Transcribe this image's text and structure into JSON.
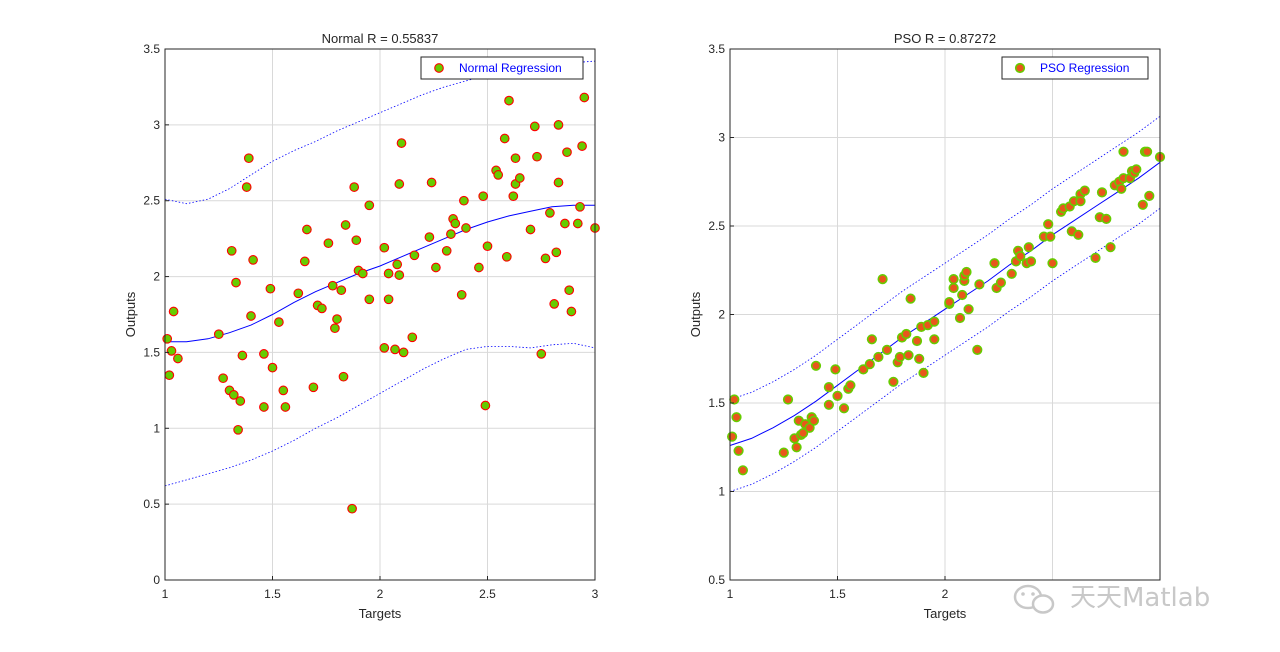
{
  "watermark": "天天Matlab",
  "colors": {
    "marker_fill": "#66cc00",
    "marker_edge_normal": "#ff0000",
    "marker_fill_pso": "#e8571c",
    "marker_edge_pso": "#66cc00",
    "fit_line": "#0000ff",
    "bound_line": "#0000ff",
    "grid": "#d9d9d9",
    "axis": "#262626"
  },
  "chart_data": [
    {
      "type": "scatter",
      "title": "Normal R =  0.55837",
      "xlabel": "Targets",
      "ylabel": "Outputs",
      "xlim": [
        1,
        3
      ],
      "ylim": [
        0,
        3.5
      ],
      "xticks": [
        1,
        1.5,
        2,
        2.5,
        3
      ],
      "xtick_labels": [
        "1",
        "1.5",
        "2",
        "2.5",
        "3"
      ],
      "yticks": [
        0,
        0.5,
        1,
        1.5,
        2,
        2.5,
        3,
        3.5
      ],
      "ytick_labels": [
        "0",
        "0.5",
        "1",
        "1.5",
        "2",
        "2.5",
        "3",
        "3.5"
      ],
      "grid": true,
      "legend": {
        "label": "Normal Regression",
        "placement": "top-right"
      },
      "points": [
        [
          1.01,
          1.59
        ],
        [
          1.02,
          1.35
        ],
        [
          1.03,
          1.51
        ],
        [
          1.04,
          1.77
        ],
        [
          1.06,
          1.46
        ],
        [
          1.25,
          1.62
        ],
        [
          1.27,
          1.33
        ],
        [
          1.3,
          1.25
        ],
        [
          1.31,
          2.17
        ],
        [
          1.32,
          1.22
        ],
        [
          1.33,
          1.96
        ],
        [
          1.34,
          0.99
        ],
        [
          1.35,
          1.18
        ],
        [
          1.36,
          1.48
        ],
        [
          1.38,
          2.59
        ],
        [
          1.39,
          2.78
        ],
        [
          1.4,
          1.74
        ],
        [
          1.41,
          2.11
        ],
        [
          1.46,
          1.49
        ],
        [
          1.46,
          1.14
        ],
        [
          1.49,
          1.92
        ],
        [
          1.5,
          1.4
        ],
        [
          1.53,
          1.7
        ],
        [
          1.55,
          1.25
        ],
        [
          1.56,
          1.14
        ],
        [
          1.62,
          1.89
        ],
        [
          1.65,
          2.1
        ],
        [
          1.66,
          2.31
        ],
        [
          1.69,
          1.27
        ],
        [
          1.71,
          1.81
        ],
        [
          1.73,
          1.79
        ],
        [
          1.76,
          2.22
        ],
        [
          1.78,
          1.94
        ],
        [
          1.79,
          1.66
        ],
        [
          1.8,
          1.72
        ],
        [
          1.82,
          1.91
        ],
        [
          1.83,
          1.34
        ],
        [
          1.84,
          2.34
        ],
        [
          1.87,
          0.47
        ],
        [
          1.88,
          2.59
        ],
        [
          1.89,
          2.24
        ],
        [
          1.9,
          2.04
        ],
        [
          1.92,
          2.02
        ],
        [
          1.95,
          2.47
        ],
        [
          1.95,
          1.85
        ],
        [
          2.02,
          2.19
        ],
        [
          2.02,
          1.53
        ],
        [
          2.04,
          1.85
        ],
        [
          2.04,
          2.02
        ],
        [
          2.07,
          1.52
        ],
        [
          2.08,
          2.08
        ],
        [
          2.09,
          2.61
        ],
        [
          2.09,
          2.01
        ],
        [
          2.1,
          2.88
        ],
        [
          2.11,
          1.5
        ],
        [
          2.15,
          1.6
        ],
        [
          2.16,
          2.14
        ],
        [
          2.23,
          2.26
        ],
        [
          2.24,
          2.62
        ],
        [
          2.26,
          2.06
        ],
        [
          2.31,
          2.17
        ],
        [
          2.33,
          2.28
        ],
        [
          2.34,
          2.38
        ],
        [
          2.35,
          2.35
        ],
        [
          2.38,
          1.88
        ],
        [
          2.39,
          2.5
        ],
        [
          2.4,
          2.32
        ],
        [
          2.46,
          2.06
        ],
        [
          2.48,
          2.53
        ],
        [
          2.49,
          1.15
        ],
        [
          2.5,
          2.2
        ],
        [
          2.54,
          2.7
        ],
        [
          2.55,
          2.67
        ],
        [
          2.58,
          2.91
        ],
        [
          2.59,
          2.13
        ],
        [
          2.6,
          3.16
        ],
        [
          2.62,
          2.53
        ],
        [
          2.63,
          2.61
        ],
        [
          2.63,
          2.78
        ],
        [
          2.65,
          2.65
        ],
        [
          2.7,
          2.31
        ],
        [
          2.72,
          2.99
        ],
        [
          2.73,
          2.79
        ],
        [
          2.75,
          1.49
        ],
        [
          2.77,
          2.12
        ],
        [
          2.79,
          2.42
        ],
        [
          2.81,
          1.82
        ],
        [
          2.82,
          2.16
        ],
        [
          2.83,
          2.62
        ],
        [
          2.83,
          3.0
        ],
        [
          2.86,
          2.35
        ],
        [
          2.87,
          2.82
        ],
        [
          2.88,
          1.91
        ],
        [
          2.89,
          1.77
        ],
        [
          2.92,
          2.35
        ],
        [
          2.93,
          2.46
        ],
        [
          2.94,
          2.86
        ],
        [
          2.95,
          3.18
        ],
        [
          3.0,
          2.32
        ]
      ],
      "fit_line": [
        [
          1.0,
          1.57
        ],
        [
          1.1,
          1.57
        ],
        [
          1.2,
          1.59
        ],
        [
          1.3,
          1.63
        ],
        [
          1.4,
          1.68
        ],
        [
          1.5,
          1.75
        ],
        [
          1.6,
          1.83
        ],
        [
          1.7,
          1.9
        ],
        [
          1.8,
          1.96
        ],
        [
          1.9,
          2.02
        ],
        [
          2.0,
          2.07
        ],
        [
          2.1,
          2.13
        ],
        [
          2.2,
          2.19
        ],
        [
          2.3,
          2.25
        ],
        [
          2.4,
          2.31
        ],
        [
          2.5,
          2.36
        ],
        [
          2.6,
          2.4
        ],
        [
          2.7,
          2.43
        ],
        [
          2.8,
          2.46
        ],
        [
          2.9,
          2.47
        ],
        [
          3.0,
          2.47
        ]
      ],
      "upper_bound": [
        [
          1.0,
          2.51
        ],
        [
          1.1,
          2.48
        ],
        [
          1.2,
          2.51
        ],
        [
          1.3,
          2.58
        ],
        [
          1.4,
          2.67
        ],
        [
          1.5,
          2.76
        ],
        [
          1.6,
          2.83
        ],
        [
          1.7,
          2.89
        ],
        [
          1.8,
          2.96
        ],
        [
          1.9,
          3.02
        ],
        [
          2.0,
          3.08
        ],
        [
          2.1,
          3.14
        ],
        [
          2.2,
          3.2
        ],
        [
          2.3,
          3.25
        ],
        [
          2.4,
          3.29
        ],
        [
          2.5,
          3.33
        ],
        [
          2.6,
          3.36
        ],
        [
          2.7,
          3.38
        ],
        [
          2.8,
          3.4
        ],
        [
          2.9,
          3.41
        ],
        [
          3.0,
          3.42
        ]
      ],
      "lower_bound": [
        [
          1.0,
          0.62
        ],
        [
          1.1,
          0.66
        ],
        [
          1.2,
          0.7
        ],
        [
          1.3,
          0.74
        ],
        [
          1.4,
          0.79
        ],
        [
          1.5,
          0.85
        ],
        [
          1.6,
          0.92
        ],
        [
          1.7,
          1.0
        ],
        [
          1.8,
          1.07
        ],
        [
          1.9,
          1.15
        ],
        [
          2.0,
          1.23
        ],
        [
          2.1,
          1.31
        ],
        [
          2.2,
          1.39
        ],
        [
          2.3,
          1.46
        ],
        [
          2.4,
          1.52
        ],
        [
          2.5,
          1.54
        ],
        [
          2.6,
          1.54
        ],
        [
          2.7,
          1.53
        ],
        [
          2.8,
          1.55
        ],
        [
          2.9,
          1.56
        ],
        [
          3.0,
          1.53
        ]
      ]
    },
    {
      "type": "scatter",
      "title": "PSO R =  0.87272",
      "xlabel": "Targets",
      "ylabel": "Outputs",
      "xlim": [
        1,
        3
      ],
      "ylim": [
        0.5,
        3.5
      ],
      "xticks": [
        1,
        1.5,
        2
      ],
      "xtick_labels": [
        "1",
        "1.5",
        "2"
      ],
      "xgrid_extra": [
        2.5
      ],
      "yticks": [
        0.5,
        1,
        1.5,
        2,
        2.5,
        3,
        3.5
      ],
      "ytick_labels": [
        "0.5",
        "1",
        "1.5",
        "2",
        "2.5",
        "3",
        "3.5"
      ],
      "grid": true,
      "legend": {
        "label": "PSO Regression",
        "placement": "top-right"
      },
      "points": [
        [
          1.01,
          1.31
        ],
        [
          1.02,
          1.52
        ],
        [
          1.03,
          1.42
        ],
        [
          1.04,
          1.23
        ],
        [
          1.06,
          1.12
        ],
        [
          1.25,
          1.22
        ],
        [
          1.27,
          1.52
        ],
        [
          1.3,
          1.3
        ],
        [
          1.31,
          1.25
        ],
        [
          1.32,
          1.4
        ],
        [
          1.33,
          1.32
        ],
        [
          1.34,
          1.33
        ],
        [
          1.35,
          1.38
        ],
        [
          1.37,
          1.36
        ],
        [
          1.38,
          1.42
        ],
        [
          1.39,
          1.4
        ],
        [
          1.4,
          1.71
        ],
        [
          1.46,
          1.49
        ],
        [
          1.46,
          1.59
        ],
        [
          1.49,
          1.69
        ],
        [
          1.5,
          1.54
        ],
        [
          1.53,
          1.47
        ],
        [
          1.55,
          1.58
        ],
        [
          1.56,
          1.6
        ],
        [
          1.62,
          1.69
        ],
        [
          1.65,
          1.72
        ],
        [
          1.66,
          1.86
        ],
        [
          1.69,
          1.76
        ],
        [
          1.71,
          2.2
        ],
        [
          1.73,
          1.8
        ],
        [
          1.76,
          1.62
        ],
        [
          1.78,
          1.73
        ],
        [
          1.79,
          1.76
        ],
        [
          1.8,
          1.87
        ],
        [
          1.82,
          1.89
        ],
        [
          1.83,
          1.77
        ],
        [
          1.84,
          2.09
        ],
        [
          1.87,
          1.85
        ],
        [
          1.88,
          1.75
        ],
        [
          1.89,
          1.93
        ],
        [
          1.9,
          1.67
        ],
        [
          1.92,
          1.94
        ],
        [
          1.95,
          1.96
        ],
        [
          1.95,
          1.86
        ],
        [
          2.02,
          2.06
        ],
        [
          2.02,
          2.07
        ],
        [
          2.04,
          2.2
        ],
        [
          2.04,
          2.15
        ],
        [
          2.07,
          1.98
        ],
        [
          2.08,
          2.11
        ],
        [
          2.09,
          2.19
        ],
        [
          2.09,
          2.22
        ],
        [
          2.1,
          2.24
        ],
        [
          2.11,
          2.03
        ],
        [
          2.15,
          1.8
        ],
        [
          2.16,
          2.17
        ],
        [
          2.23,
          2.29
        ],
        [
          2.24,
          2.15
        ],
        [
          2.26,
          2.18
        ],
        [
          2.31,
          2.23
        ],
        [
          2.33,
          2.3
        ],
        [
          2.34,
          2.36
        ],
        [
          2.35,
          2.33
        ],
        [
          2.38,
          2.29
        ],
        [
          2.39,
          2.38
        ],
        [
          2.4,
          2.3
        ],
        [
          2.46,
          2.44
        ],
        [
          2.48,
          2.51
        ],
        [
          2.49,
          2.44
        ],
        [
          2.5,
          2.29
        ],
        [
          2.54,
          2.58
        ],
        [
          2.55,
          2.6
        ],
        [
          2.58,
          2.61
        ],
        [
          2.59,
          2.47
        ],
        [
          2.6,
          2.64
        ],
        [
          2.62,
          2.45
        ],
        [
          2.63,
          2.68
        ],
        [
          2.63,
          2.64
        ],
        [
          2.65,
          2.7
        ],
        [
          2.7,
          2.32
        ],
        [
          2.72,
          2.55
        ],
        [
          2.73,
          2.69
        ],
        [
          2.75,
          2.54
        ],
        [
          2.77,
          2.38
        ],
        [
          2.79,
          2.73
        ],
        [
          2.81,
          2.75
        ],
        [
          2.82,
          2.71
        ],
        [
          2.83,
          2.77
        ],
        [
          2.83,
          2.92
        ],
        [
          2.86,
          2.77
        ],
        [
          2.87,
          2.81
        ],
        [
          2.88,
          2.8
        ],
        [
          2.89,
          2.82
        ],
        [
          2.92,
          2.62
        ],
        [
          2.93,
          2.92
        ],
        [
          2.94,
          2.92
        ],
        [
          2.95,
          2.67
        ],
        [
          3.0,
          2.89
        ]
      ],
      "fit_line": [
        [
          1.0,
          1.26
        ],
        [
          1.1,
          1.3
        ],
        [
          1.2,
          1.36
        ],
        [
          1.3,
          1.43
        ],
        [
          1.4,
          1.51
        ],
        [
          1.5,
          1.6
        ],
        [
          1.6,
          1.69
        ],
        [
          1.7,
          1.78
        ],
        [
          1.8,
          1.87
        ],
        [
          1.9,
          1.95
        ],
        [
          2.0,
          2.03
        ],
        [
          2.1,
          2.11
        ],
        [
          2.2,
          2.19
        ],
        [
          2.3,
          2.28
        ],
        [
          2.4,
          2.36
        ],
        [
          2.5,
          2.45
        ],
        [
          2.6,
          2.53
        ],
        [
          2.7,
          2.61
        ],
        [
          2.8,
          2.69
        ],
        [
          2.9,
          2.77
        ],
        [
          3.0,
          2.86
        ]
      ],
      "upper_bound": [
        [
          1.0,
          1.52
        ],
        [
          1.1,
          1.56
        ],
        [
          1.2,
          1.62
        ],
        [
          1.3,
          1.69
        ],
        [
          1.4,
          1.77
        ],
        [
          1.5,
          1.86
        ],
        [
          1.6,
          1.95
        ],
        [
          1.7,
          2.04
        ],
        [
          1.8,
          2.13
        ],
        [
          1.9,
          2.21
        ],
        [
          2.0,
          2.29
        ],
        [
          2.1,
          2.37
        ],
        [
          2.2,
          2.45
        ],
        [
          2.3,
          2.54
        ],
        [
          2.4,
          2.62
        ],
        [
          2.5,
          2.71
        ],
        [
          2.6,
          2.79
        ],
        [
          2.7,
          2.87
        ],
        [
          2.8,
          2.95
        ],
        [
          2.9,
          3.03
        ],
        [
          3.0,
          3.12
        ]
      ],
      "lower_bound": [
        [
          1.0,
          1.0
        ],
        [
          1.1,
          1.04
        ],
        [
          1.2,
          1.1
        ],
        [
          1.3,
          1.17
        ],
        [
          1.4,
          1.25
        ],
        [
          1.5,
          1.34
        ],
        [
          1.6,
          1.43
        ],
        [
          1.7,
          1.52
        ],
        [
          1.8,
          1.61
        ],
        [
          1.9,
          1.69
        ],
        [
          2.0,
          1.77
        ],
        [
          2.1,
          1.85
        ],
        [
          2.2,
          1.93
        ],
        [
          2.3,
          2.02
        ],
        [
          2.4,
          2.1
        ],
        [
          2.5,
          2.19
        ],
        [
          2.6,
          2.27
        ],
        [
          2.7,
          2.35
        ],
        [
          2.8,
          2.43
        ],
        [
          2.9,
          2.51
        ],
        [
          3.0,
          2.6
        ]
      ]
    }
  ]
}
